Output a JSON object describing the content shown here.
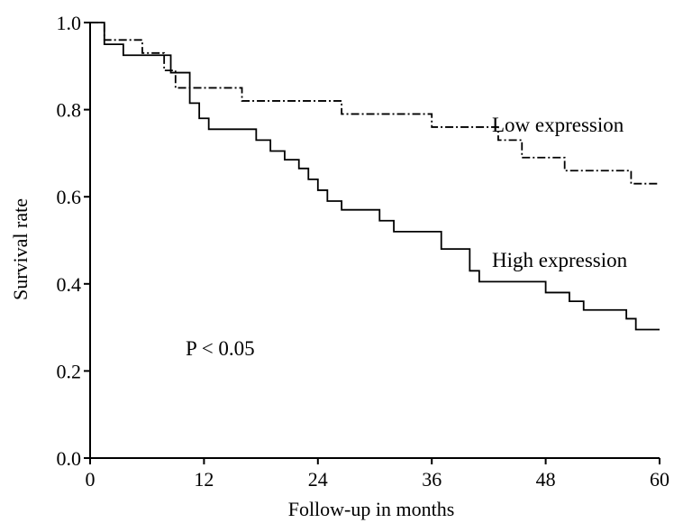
{
  "chart_data": {
    "type": "line",
    "xlabel": "Follow-up in months",
    "ylabel": "Survival rate",
    "xlim": [
      0,
      60
    ],
    "ylim": [
      0,
      1
    ],
    "xticks": [
      "0",
      "12",
      "24",
      "36",
      "48",
      "60"
    ],
    "yticks": [
      "0.0",
      "0.2",
      "0.4",
      "0.6",
      "0.8",
      "1.0"
    ],
    "grid": false,
    "step": true,
    "annotation": "P < 0.05",
    "series": [
      {
        "name": "Low expression",
        "label": "Low expression",
        "style": "dashdot",
        "x": [
          0,
          1.5,
          5.5,
          7.8,
          9,
          13,
          16,
          23,
          26.5,
          34,
          36,
          42,
          43,
          45.5,
          50,
          55.5,
          57,
          60
        ],
        "y": [
          1.0,
          0.96,
          0.93,
          0.89,
          0.85,
          0.85,
          0.82,
          0.82,
          0.79,
          0.79,
          0.76,
          0.76,
          0.73,
          0.69,
          0.66,
          0.66,
          0.63,
          0.63
        ]
      },
      {
        "name": "High expression",
        "label": "High expression",
        "style": "solid",
        "x": [
          0,
          1.5,
          3.5,
          8.5,
          10.5,
          11.5,
          12.5,
          15,
          17.5,
          19,
          20.5,
          22,
          23,
          24,
          25,
          26.5,
          29.5,
          30.5,
          32,
          35,
          37,
          40,
          41,
          47,
          48,
          50.5,
          51,
          52,
          55,
          56.5,
          57.5,
          60
        ],
        "y": [
          1.0,
          0.95,
          0.925,
          0.885,
          0.815,
          0.78,
          0.755,
          0.755,
          0.73,
          0.705,
          0.685,
          0.665,
          0.64,
          0.615,
          0.59,
          0.57,
          0.57,
          0.545,
          0.52,
          0.52,
          0.48,
          0.43,
          0.405,
          0.405,
          0.38,
          0.36,
          0.36,
          0.34,
          0.34,
          0.32,
          0.295,
          0.295
        ]
      }
    ]
  }
}
